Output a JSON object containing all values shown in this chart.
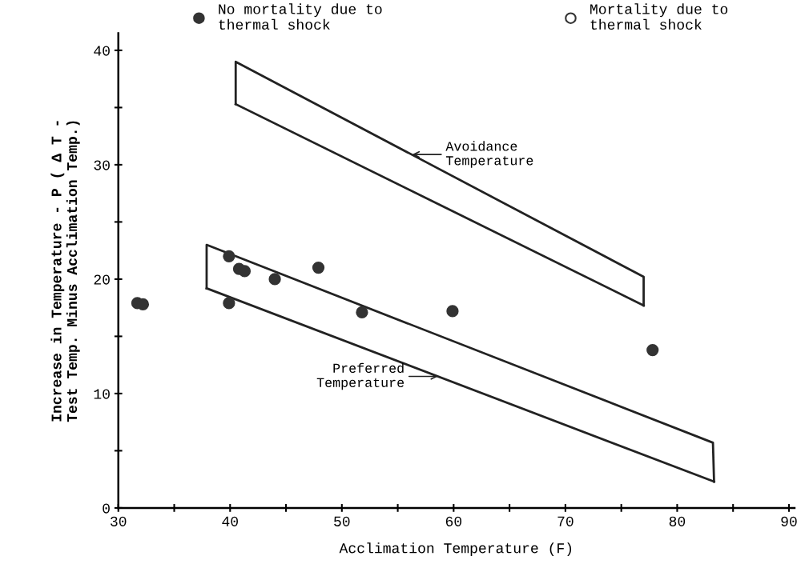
{
  "chart_data": {
    "type": "scatter",
    "xlabel": "Acclimation Temperature (F)",
    "ylabel": "Increase in Temperature - P ( Δ T -\nTest Temp. Minus Acclimation Temp.)",
    "xlim": [
      30,
      90.5
    ],
    "ylim": [
      0,
      41.5
    ],
    "xticks": [
      30,
      {
        "value": 35,
        "label": null
      },
      40,
      {
        "value": 45,
        "label": null
      },
      50,
      {
        "value": 55,
        "label": null
      },
      60,
      {
        "value": 65,
        "label": null
      },
      70,
      {
        "value": 75,
        "label": null
      },
      80,
      {
        "value": 85,
        "label": null
      },
      90
    ],
    "yticks": [
      0,
      {
        "value": 5,
        "label": null
      },
      10,
      {
        "value": 15,
        "label": null
      },
      20,
      {
        "value": 25,
        "label": null
      },
      30,
      {
        "value": 35,
        "label": null
      },
      40
    ],
    "grid": false,
    "legend": "top",
    "marker": "circle",
    "series": [
      {
        "name": "No mortality due to\nthermal shock",
        "color": "#333333",
        "x": [
          31.7,
          32.2,
          39.9,
          39.9,
          40.8,
          41.3,
          44.0,
          47.9,
          51.8,
          59.9,
          77.8
        ],
        "values": [
          17.9,
          17.8,
          22.0,
          17.9,
          20.9,
          20.7,
          20.0,
          21.0,
          17.1,
          17.2,
          13.8
        ]
      },
      {
        "name": "Mortality due to\nthermal shock",
        "color": "#333333"
      },
      {
        "type": "line",
        "marker": "none",
        "color": "#222222",
        "x": [
          40.5,
          40.5,
          77,
          77
        ],
        "values": [
          35.3,
          39.0,
          20.2,
          17.7
        ]
      },
      {
        "type": "line",
        "marker": "none",
        "color": "#222222",
        "x": [
          40.5,
          77
        ],
        "values": [
          35.3,
          17.7
        ]
      },
      {
        "type": "line",
        "marker": "none",
        "color": "#222222",
        "x": [
          37.9,
          37.9,
          83.2,
          83.3
        ],
        "values": [
          19.2,
          23.0,
          5.7,
          2.3
        ]
      },
      {
        "type": "line",
        "marker": "none",
        "color": "#222222",
        "x": [
          37.9,
          83.3
        ],
        "values": [
          19.2,
          2.3
        ]
      }
    ],
    "annotations": [
      {
        "text": "Avoidance\nTemperature",
        "x": 56.3,
        "y": 30.9
      },
      {
        "text": "Preferred\nTemperature",
        "x": 58.6,
        "y": 11.5
      }
    ]
  }
}
